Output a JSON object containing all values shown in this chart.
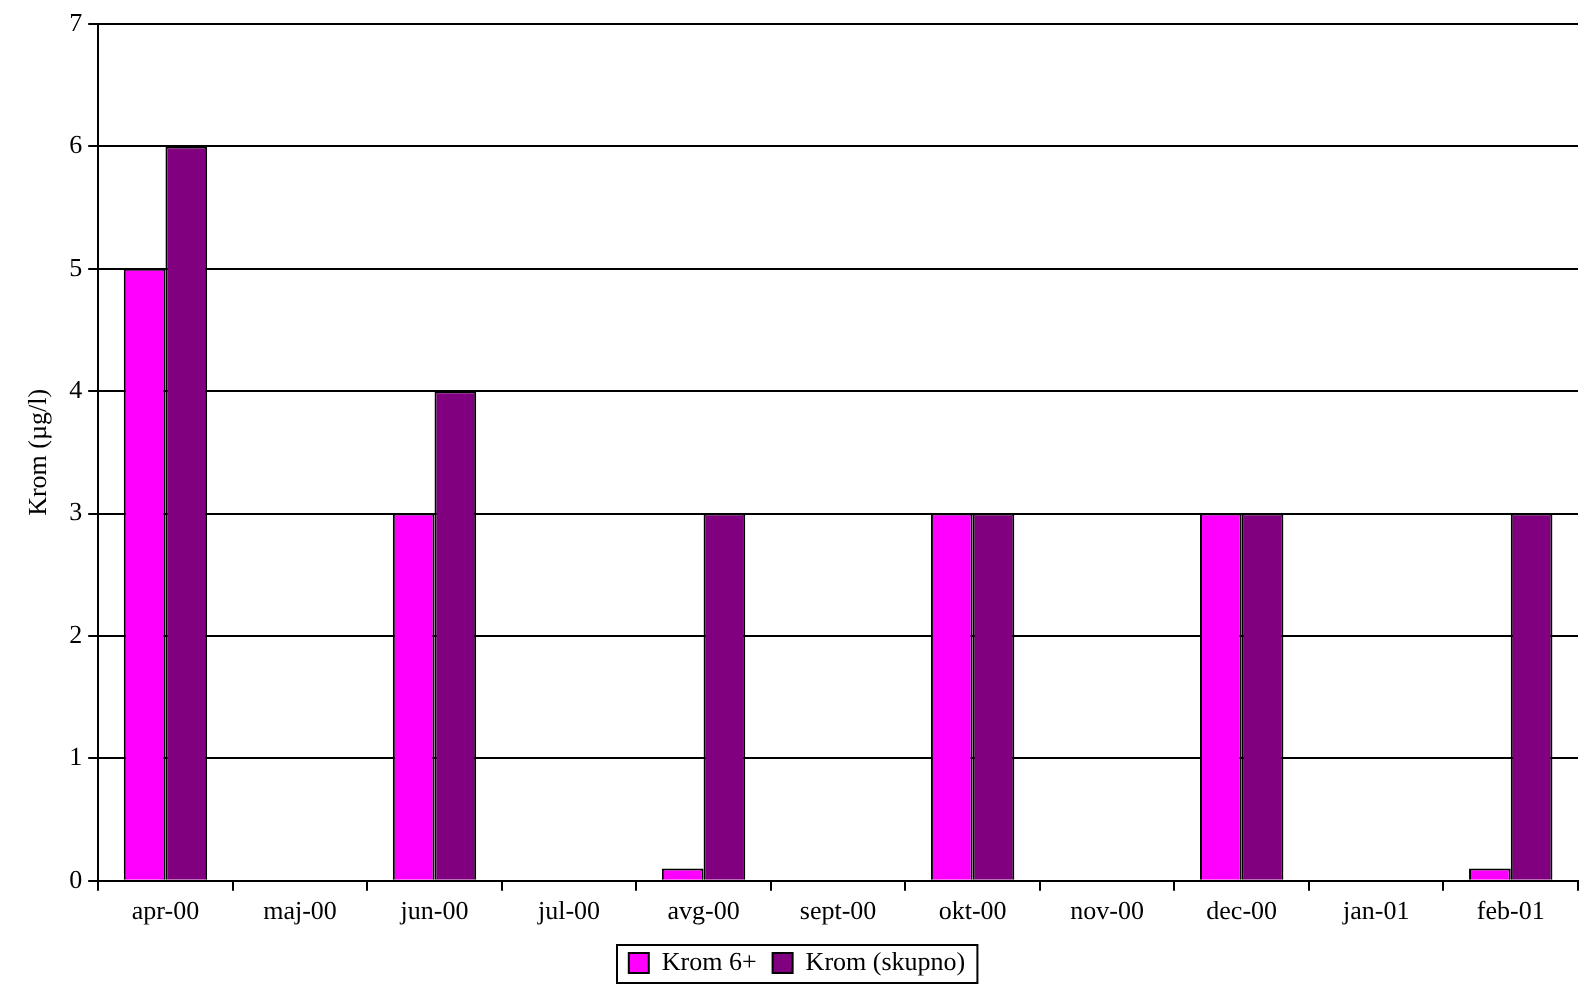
{
  "chart_data": {
    "type": "bar",
    "ylabel": "Krom (µg/l)",
    "categories": [
      "apr-00",
      "maj-00",
      "jun-00",
      "jul-00",
      "avg-00",
      "sept-00",
      "okt-00",
      "nov-00",
      "dec-00",
      "jan-01",
      "feb-01"
    ],
    "series": [
      {
        "name": "Krom 6+",
        "color": "#ff00ff",
        "values": [
          5,
          0,
          3,
          0,
          0.1,
          0,
          3,
          0,
          3,
          0,
          0.1
        ]
      },
      {
        "name": "Krom (skupno)",
        "color": "#800080",
        "values": [
          6,
          0,
          4,
          0,
          3,
          0,
          3,
          0,
          3,
          0,
          3
        ]
      }
    ],
    "ylim": [
      0,
      7
    ],
    "yticks": [
      0,
      1,
      2,
      3,
      4,
      5,
      6,
      7
    ],
    "grid": "y",
    "legend": "bottom"
  }
}
